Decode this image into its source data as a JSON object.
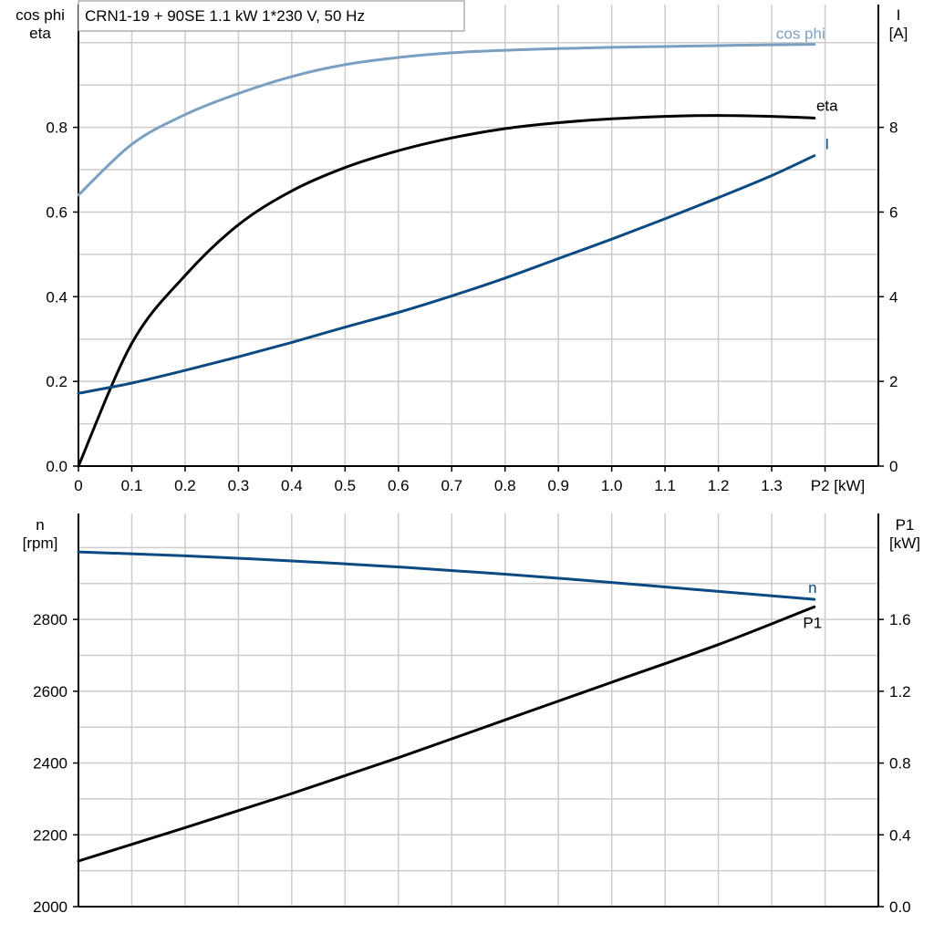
{
  "title": "CRN1-19 + 90SE   1.1 kW   1*230 V, 50 Hz",
  "colors": {
    "cos_phi": "#7a9fc0",
    "eta": "#000000",
    "I": "#0b4a82",
    "n": "#0b4a82",
    "P1": "#000000",
    "grid": "#cccccc"
  },
  "chart_data": [
    {
      "type": "line",
      "xlabel": "P2 [kW]",
      "ylabel_left": [
        "cos phi",
        "eta"
      ],
      "ylabel_right": [
        "I",
        "[A]"
      ],
      "xlim": [
        0,
        1.5
      ],
      "ylim_left": [
        0,
        1.09
      ],
      "ylim_right": [
        0,
        10.9
      ],
      "xticks": [
        "0",
        "0.1",
        "0.2",
        "0.3",
        "0.4",
        "0.5",
        "0.6",
        "0.7",
        "0.8",
        "0.9",
        "1.0",
        "1.1",
        "1.2",
        "1.3"
      ],
      "yticks_left": [
        "0.0",
        "0.2",
        "0.4",
        "0.6",
        "0.8"
      ],
      "yticks_right": [
        "0",
        "2",
        "4",
        "6",
        "8"
      ],
      "grid": true,
      "x": [
        0,
        0.1,
        0.2,
        0.3,
        0.4,
        0.5,
        0.6,
        0.7,
        0.8,
        0.9,
        1.0,
        1.1,
        1.2,
        1.3,
        1.38
      ],
      "series": [
        {
          "name": "cos phi",
          "axis": "left",
          "values": [
            0.64,
            0.76,
            0.83,
            0.88,
            0.92,
            0.948,
            0.965,
            0.976,
            0.982,
            0.986,
            0.989,
            0.991,
            0.993,
            0.995,
            0.996
          ]
        },
        {
          "name": "eta",
          "axis": "left",
          "values": [
            0.0,
            0.29,
            0.45,
            0.57,
            0.65,
            0.705,
            0.745,
            0.775,
            0.797,
            0.811,
            0.82,
            0.826,
            0.828,
            0.826,
            0.822
          ]
        },
        {
          "name": "I",
          "axis": "right",
          "values": [
            1.72,
            1.96,
            2.26,
            2.58,
            2.92,
            3.28,
            3.63,
            4.02,
            4.44,
            4.9,
            5.36,
            5.84,
            6.34,
            6.86,
            7.33
          ]
        }
      ]
    },
    {
      "type": "line",
      "xlim": [
        0,
        1.5
      ],
      "ylabel_left": [
        "n",
        "[rpm]"
      ],
      "ylabel_right": [
        "P1",
        "[kW]"
      ],
      "ylim_left": [
        2000,
        3095
      ],
      "ylim_right": [
        0,
        2.19
      ],
      "yticks_left": [
        "2000",
        "2200",
        "2400",
        "2600",
        "2800"
      ],
      "yticks_right": [
        "0.0",
        "0.4",
        "0.8",
        "1.2",
        "1.6"
      ],
      "grid": true,
      "x": [
        0,
        0.2,
        0.4,
        0.6,
        0.8,
        1.0,
        1.2,
        1.38
      ],
      "series": [
        {
          "name": "n",
          "axis": "left",
          "values": [
            2988,
            2977,
            2963,
            2946,
            2926,
            2903,
            2878,
            2856
          ]
        },
        {
          "name": "P1",
          "axis": "right",
          "values": [
            0.254,
            0.44,
            0.63,
            0.83,
            1.04,
            1.25,
            1.46,
            1.67
          ]
        }
      ]
    }
  ]
}
